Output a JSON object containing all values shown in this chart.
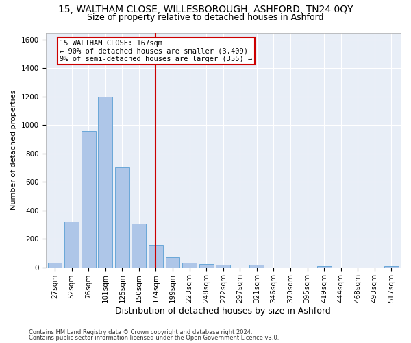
{
  "title": "15, WALTHAM CLOSE, WILLESBOROUGH, ASHFORD, TN24 0QY",
  "subtitle": "Size of property relative to detached houses in Ashford",
  "xlabel": "Distribution of detached houses by size in Ashford",
  "ylabel": "Number of detached properties",
  "categories": [
    "27sqm",
    "52sqm",
    "76sqm",
    "101sqm",
    "125sqm",
    "150sqm",
    "174sqm",
    "199sqm",
    "223sqm",
    "248sqm",
    "272sqm",
    "297sqm",
    "321sqm",
    "346sqm",
    "370sqm",
    "395sqm",
    "419sqm",
    "444sqm",
    "468sqm",
    "493sqm",
    "517sqm"
  ],
  "values": [
    30,
    320,
    960,
    1200,
    700,
    305,
    155,
    70,
    30,
    20,
    15,
    0,
    15,
    0,
    0,
    0,
    10,
    0,
    0,
    0,
    10
  ],
  "bar_color": "#aec6e8",
  "bar_edge_color": "#5a9fd4",
  "ylim": [
    0,
    1650
  ],
  "yticks": [
    0,
    200,
    400,
    600,
    800,
    1000,
    1200,
    1400,
    1600
  ],
  "vline_x": 6.0,
  "vline_color": "#cc0000",
  "annotation_line1": "15 WALTHAM CLOSE: 167sqm",
  "annotation_line2": "← 90% of detached houses are smaller (3,409)",
  "annotation_line3": "9% of semi-detached houses are larger (355) →",
  "annotation_box_color": "#cc0000",
  "bg_color": "#e8eef7",
  "footnote1": "Contains HM Land Registry data © Crown copyright and database right 2024.",
  "footnote2": "Contains public sector information licensed under the Open Government Licence v3.0.",
  "title_fontsize": 10,
  "subtitle_fontsize": 9,
  "ylabel_fontsize": 8,
  "xlabel_fontsize": 9,
  "tick_fontsize": 7.5,
  "annot_fontsize": 7.5,
  "footnote_fontsize": 6
}
